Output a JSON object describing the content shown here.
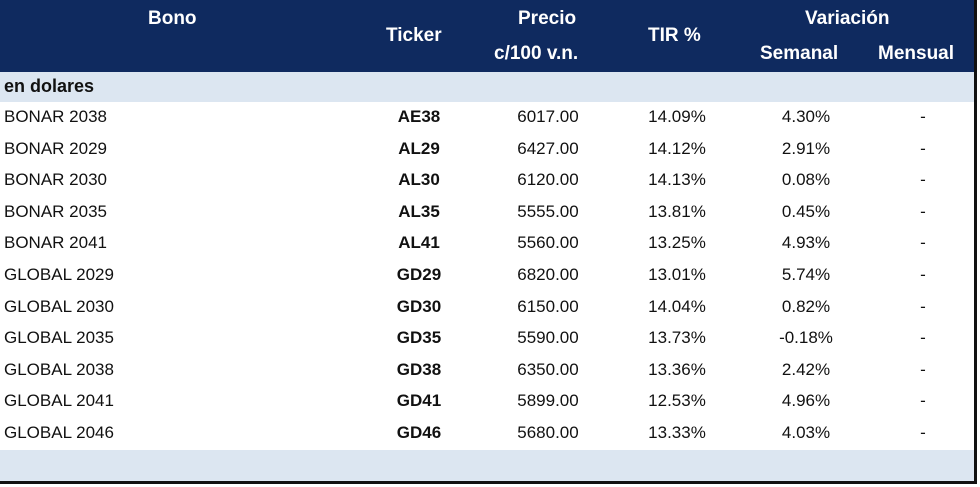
{
  "header": {
    "bono": "Bono",
    "ticker": "Ticker",
    "precio_line1": "Precio",
    "precio_line2": "c/100 v.n.",
    "tir": "TIR %",
    "variacion": "Variación",
    "semanal": "Semanal",
    "mensual": "Mensual"
  },
  "section_label": "en dolares",
  "rows": [
    {
      "bono": "BONAR 2038",
      "ticker": "AE38",
      "precio": "6017.00",
      "tir": "14.09%",
      "semanal": "4.30%",
      "mensual": "-"
    },
    {
      "bono": "BONAR 2029",
      "ticker": "AL29",
      "precio": "6427.00",
      "tir": "14.12%",
      "semanal": "2.91%",
      "mensual": "-"
    },
    {
      "bono": "BONAR 2030",
      "ticker": "AL30",
      "precio": "6120.00",
      "tir": "14.13%",
      "semanal": "0.08%",
      "mensual": "-"
    },
    {
      "bono": "BONAR 2035",
      "ticker": "AL35",
      "precio": "5555.00",
      "tir": "13.81%",
      "semanal": "0.45%",
      "mensual": "-"
    },
    {
      "bono": "BONAR 2041",
      "ticker": "AL41",
      "precio": "5560.00",
      "tir": "13.25%",
      "semanal": "4.93%",
      "mensual": "-"
    },
    {
      "bono": "GLOBAL 2029",
      "ticker": "GD29",
      "precio": "6820.00",
      "tir": "13.01%",
      "semanal": "5.74%",
      "mensual": "-"
    },
    {
      "bono": "GLOBAL 2030",
      "ticker": "GD30",
      "precio": "6150.00",
      "tir": "14.04%",
      "semanal": "0.82%",
      "mensual": "-"
    },
    {
      "bono": "GLOBAL 2035",
      "ticker": "GD35",
      "precio": "5590.00",
      "tir": "13.73%",
      "semanal": "-0.18%",
      "mensual": "-"
    },
    {
      "bono": "GLOBAL 2038",
      "ticker": "GD38",
      "precio": "6350.00",
      "tir": "13.36%",
      "semanal": "2.42%",
      "mensual": "-"
    },
    {
      "bono": "GLOBAL 2041",
      "ticker": "GD41",
      "precio": "5899.00",
      "tir": "12.53%",
      "semanal": "4.96%",
      "mensual": "-"
    },
    {
      "bono": "GLOBAL 2046",
      "ticker": "GD46",
      "precio": "5680.00",
      "tir": "13.33%",
      "semanal": "4.03%",
      "mensual": "-"
    }
  ],
  "colors": {
    "header_bg": "#0f2a5f",
    "band_bg": "#dce6f1"
  }
}
